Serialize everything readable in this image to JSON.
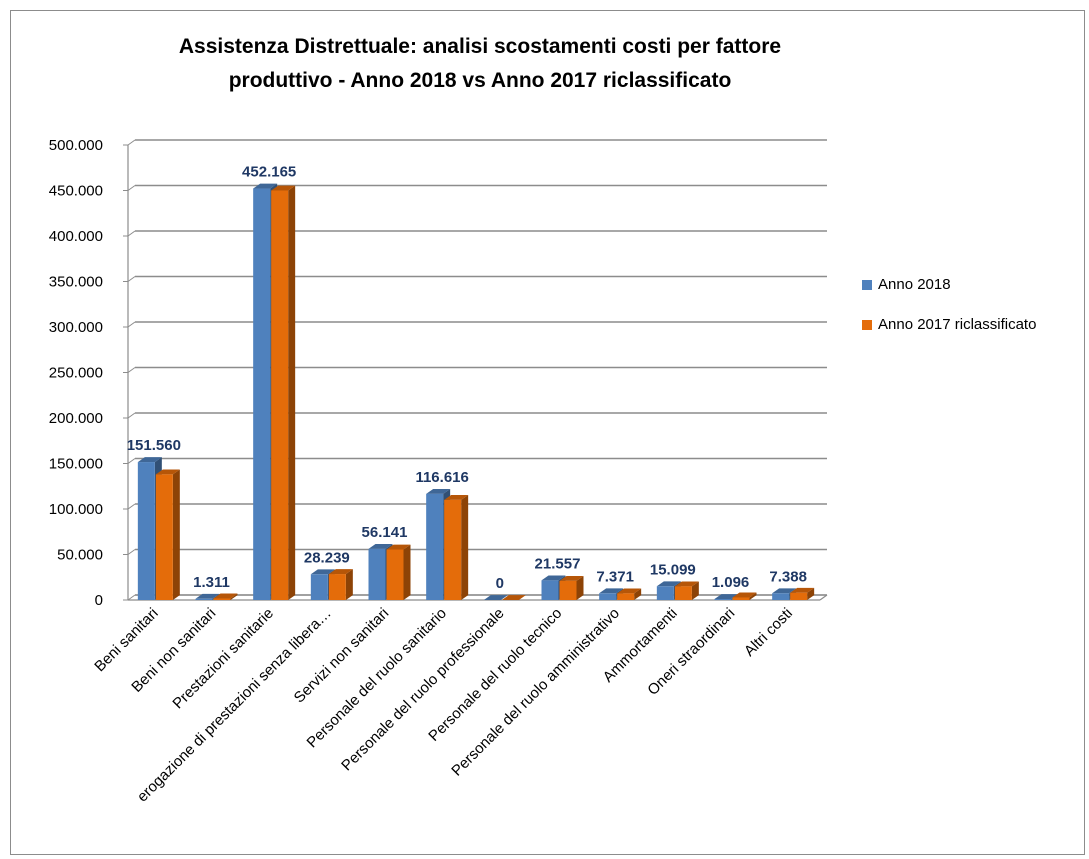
{
  "chart_data": {
    "type": "bar",
    "title": "Assistenza Distrettuale: analisi scostamenti costi per fattore produttivo - Anno 2018 vs Anno 2017 riclassificato",
    "categories": [
      "Beni sanitari",
      "Beni non sanitari",
      "Prestazioni sanitarie",
      "erogazione di prestazioni senza libera…",
      "Servizi non sanitari",
      "Personale del ruolo sanitario",
      "Personale del ruolo professionale",
      "Personale del ruolo tecnico",
      "Personale del ruolo amministrativo",
      "Ammortamenti",
      "Oneri straordinari",
      "Altri costi"
    ],
    "series": [
      {
        "name": "Anno 2018",
        "color": "#4f81bd",
        "values": [
          151560,
          1311,
          452165,
          28239,
          56141,
          116616,
          0,
          21557,
          7371,
          15099,
          1096,
          7388
        ]
      },
      {
        "name": "Anno 2017 riclassificato",
        "color": "#e46c0a",
        "values": [
          138000,
          1700,
          450000,
          28500,
          55500,
          110000,
          0,
          21000,
          7300,
          15000,
          2800,
          8000
        ]
      }
    ],
    "data_labels": [
      "151.560",
      "1.311",
      "452.165",
      "28.239",
      "56.141",
      "116.616",
      "0",
      "21.557",
      "7.371",
      "15.099",
      "1.096",
      "7.388"
    ],
    "y_ticks": [
      "0",
      "50.000",
      "100.000",
      "150.000",
      "200.000",
      "250.000",
      "300.000",
      "350.000",
      "400.000",
      "450.000",
      "500.000"
    ],
    "ylim": [
      0,
      500000
    ],
    "grid": true,
    "legend_position": "right",
    "xlabel": "",
    "ylabel": ""
  }
}
